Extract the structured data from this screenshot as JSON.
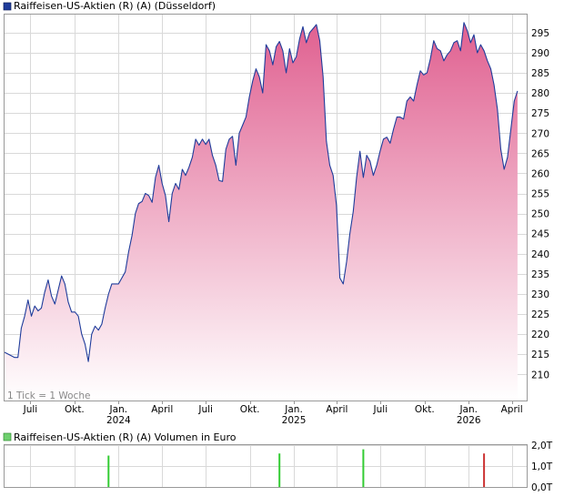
{
  "chart_data": [
    {
      "type": "area",
      "title": "Raiffeisen-US-Aktien (R) (A) (Düsseldorf)",
      "series": [
        {
          "name": "Raiffeisen-US-Aktien (R) (A) (Düsseldorf)"
        }
      ],
      "colors": {
        "line": "#1f3c9b",
        "fill_top": "#e06090",
        "fill_bottom": "#ffffff",
        "legend_box": "#1f3c9b",
        "grid": "#cccccc"
      },
      "ylim": [
        203.5,
        299.5
      ],
      "yticks": [
        210,
        215,
        220,
        225,
        230,
        235,
        240,
        245,
        250,
        255,
        260,
        265,
        270,
        275,
        280,
        285,
        290,
        295
      ],
      "xlim": [
        "2023-05-08",
        "2026-05-04"
      ],
      "xticks": [
        {
          "date": "2023-07-01",
          "label": "Juli"
        },
        {
          "date": "2023-10-01",
          "label": "Okt."
        },
        {
          "date": "2024-01-01",
          "label": "Jan.",
          "year": "2024"
        },
        {
          "date": "2024-04-01",
          "label": "April"
        },
        {
          "date": "2024-07-01",
          "label": "Juli"
        },
        {
          "date": "2024-10-01",
          "label": "Okt."
        },
        {
          "date": "2025-01-01",
          "label": "Jan.",
          "year": "2025"
        },
        {
          "date": "2025-04-01",
          "label": "April"
        },
        {
          "date": "2025-07-01",
          "label": "Juli"
        },
        {
          "date": "2025-10-01",
          "label": "Okt."
        },
        {
          "date": "2026-01-01",
          "label": "Jan.",
          "year": "2026"
        },
        {
          "date": "2026-04-01",
          "label": "April"
        }
      ],
      "annotation": "1 Tick = 1 Woche",
      "grid": true,
      "points": [
        [
          "2023-05-08",
          215.5
        ],
        [
          "2023-05-29",
          214.2
        ],
        [
          "2023-06-05",
          214.2
        ],
        [
          "2023-06-12",
          221.5
        ],
        [
          "2023-06-19",
          224.5
        ],
        [
          "2023-06-26",
          228.5
        ],
        [
          "2023-07-03",
          224.5
        ],
        [
          "2023-07-10",
          227
        ],
        [
          "2023-07-17",
          225.8
        ],
        [
          "2023-07-24",
          226.5
        ],
        [
          "2023-07-31",
          230.5
        ],
        [
          "2023-08-07",
          233.5
        ],
        [
          "2023-08-14",
          229.5
        ],
        [
          "2023-08-21",
          227.5
        ],
        [
          "2023-08-28",
          231
        ],
        [
          "2023-09-04",
          234.5
        ],
        [
          "2023-09-11",
          232.5
        ],
        [
          "2023-09-18",
          228
        ],
        [
          "2023-09-25",
          225.5
        ],
        [
          "2023-10-02",
          225.5
        ],
        [
          "2023-10-09",
          224.5
        ],
        [
          "2023-10-16",
          220
        ],
        [
          "2023-10-23",
          217.5
        ],
        [
          "2023-10-30",
          213.2
        ],
        [
          "2023-11-06",
          220
        ],
        [
          "2023-11-13",
          222
        ],
        [
          "2023-11-20",
          221
        ],
        [
          "2023-11-27",
          222.5
        ],
        [
          "2023-12-04",
          226.5
        ],
        [
          "2023-12-11",
          230
        ],
        [
          "2023-12-18",
          232.5
        ],
        [
          "2024-01-01",
          232.5
        ],
        [
          "2024-01-15",
          235.5
        ],
        [
          "2024-01-22",
          240.5
        ],
        [
          "2024-01-29",
          244.5
        ],
        [
          "2024-02-05",
          250
        ],
        [
          "2024-02-12",
          252.5
        ],
        [
          "2024-02-19",
          253
        ],
        [
          "2024-02-26",
          255
        ],
        [
          "2024-03-04",
          254.5
        ],
        [
          "2024-03-11",
          252.8
        ],
        [
          "2024-03-18",
          259
        ],
        [
          "2024-03-25",
          262
        ],
        [
          "2024-04-01",
          257.5
        ],
        [
          "2024-04-08",
          254.5
        ],
        [
          "2024-04-15",
          248
        ],
        [
          "2024-04-22",
          255
        ],
        [
          "2024-04-29",
          257.5
        ],
        [
          "2024-05-06",
          256
        ],
        [
          "2024-05-13",
          261
        ],
        [
          "2024-05-20",
          259.5
        ],
        [
          "2024-05-27",
          261.5
        ],
        [
          "2024-06-03",
          264
        ],
        [
          "2024-06-10",
          268.5
        ],
        [
          "2024-06-17",
          267
        ],
        [
          "2024-06-24",
          268.5
        ],
        [
          "2024-07-01",
          267.2
        ],
        [
          "2024-07-08",
          268.5
        ],
        [
          "2024-07-15",
          264.5
        ],
        [
          "2024-07-22",
          262
        ],
        [
          "2024-07-29",
          258.2
        ],
        [
          "2024-08-05",
          258
        ],
        [
          "2024-08-12",
          266
        ],
        [
          "2024-08-19",
          268.5
        ],
        [
          "2024-08-26",
          269.2
        ],
        [
          "2024-09-02",
          262
        ],
        [
          "2024-09-09",
          270
        ],
        [
          "2024-09-16",
          272
        ],
        [
          "2024-09-23",
          274
        ],
        [
          "2024-09-30",
          279
        ],
        [
          "2024-10-07",
          283
        ],
        [
          "2024-10-14",
          286
        ],
        [
          "2024-10-21",
          284
        ],
        [
          "2024-10-28",
          280
        ],
        [
          "2024-11-04",
          292
        ],
        [
          "2024-11-11",
          290.5
        ],
        [
          "2024-11-18",
          287
        ],
        [
          "2024-11-25",
          291.5
        ],
        [
          "2024-12-02",
          292.8
        ],
        [
          "2024-12-09",
          290.5
        ],
        [
          "2024-12-16",
          285
        ],
        [
          "2024-12-23",
          291
        ],
        [
          "2024-12-30",
          287.5
        ],
        [
          "2025-01-06",
          289
        ],
        [
          "2025-01-13",
          293.5
        ],
        [
          "2025-01-20",
          296.5
        ],
        [
          "2025-01-27",
          292.5
        ],
        [
          "2025-02-03",
          295
        ],
        [
          "2025-02-10",
          296
        ],
        [
          "2025-02-17",
          297
        ],
        [
          "2025-02-24",
          293
        ],
        [
          "2025-03-03",
          284
        ],
        [
          "2025-03-10",
          268
        ],
        [
          "2025-03-17",
          262
        ],
        [
          "2025-03-24",
          259.5
        ],
        [
          "2025-03-31",
          252
        ],
        [
          "2025-04-07",
          234
        ],
        [
          "2025-04-14",
          232.5
        ],
        [
          "2025-04-21",
          238
        ],
        [
          "2025-04-28",
          245
        ],
        [
          "2025-05-05",
          250.5
        ],
        [
          "2025-05-12",
          259
        ],
        [
          "2025-05-19",
          265.5
        ],
        [
          "2025-05-26",
          259
        ],
        [
          "2025-06-02",
          264.5
        ],
        [
          "2025-06-09",
          263
        ],
        [
          "2025-06-16",
          259.5
        ],
        [
          "2025-06-23",
          262
        ],
        [
          "2025-06-30",
          265.5
        ],
        [
          "2025-07-07",
          268.5
        ],
        [
          "2025-07-14",
          269
        ],
        [
          "2025-07-21",
          267.5
        ],
        [
          "2025-07-28",
          271
        ],
        [
          "2025-08-04",
          274
        ],
        [
          "2025-08-11",
          274
        ],
        [
          "2025-08-18",
          273.5
        ],
        [
          "2025-08-25",
          278
        ],
        [
          "2025-09-01",
          279
        ],
        [
          "2025-09-08",
          278
        ],
        [
          "2025-09-15",
          282
        ],
        [
          "2025-09-22",
          285.5
        ],
        [
          "2025-09-29",
          284.5
        ],
        [
          "2025-10-06",
          285
        ],
        [
          "2025-10-13",
          288.5
        ],
        [
          "2025-10-20",
          293
        ],
        [
          "2025-10-27",
          291
        ],
        [
          "2025-11-03",
          290.5
        ],
        [
          "2025-11-10",
          288
        ],
        [
          "2025-11-17",
          289.5
        ],
        [
          "2025-11-24",
          290.5
        ],
        [
          "2025-12-01",
          292.5
        ],
        [
          "2025-12-08",
          293
        ],
        [
          "2025-12-15",
          290.5
        ],
        [
          "2025-12-22",
          297.5
        ],
        [
          "2025-12-29",
          295.5
        ],
        [
          "2026-01-05",
          292.5
        ],
        [
          "2026-01-12",
          294.5
        ],
        [
          "2026-01-19",
          290
        ],
        [
          "2026-01-26",
          292
        ],
        [
          "2026-02-02",
          290.5
        ],
        [
          "2026-02-09",
          288
        ],
        [
          "2026-02-16",
          286
        ],
        [
          "2026-02-23",
          282
        ],
        [
          "2026-03-02",
          276
        ],
        [
          "2026-03-09",
          266
        ],
        [
          "2026-03-16",
          261
        ],
        [
          "2026-03-23",
          264
        ],
        [
          "2026-03-30",
          271
        ],
        [
          "2026-04-06",
          278
        ],
        [
          "2026-04-13",
          280.5
        ]
      ]
    },
    {
      "type": "bar",
      "title": "Raiffeisen-US-Aktien (R) (A) Volumen in Euro",
      "series": [
        {
          "name": "Raiffeisen-US-Aktien (R) (A) Volumen in Euro"
        }
      ],
      "colors": {
        "legend_box": "#6fd06f",
        "up": "#33cc33",
        "down": "#cc3333"
      },
      "yticks": [
        "0,0T",
        "1,0T",
        "2,0T"
      ],
      "ylim": [
        0,
        2
      ],
      "bars": [
        {
          "date": "2023-12-11",
          "value": 1.5,
          "color": "up"
        },
        {
          "date": "2024-12-02",
          "value": 1.6,
          "color": "up"
        },
        {
          "date": "2025-05-26",
          "value": 1.8,
          "color": "up"
        },
        {
          "date": "2026-02-02",
          "value": 1.6,
          "color": "down"
        }
      ]
    }
  ]
}
